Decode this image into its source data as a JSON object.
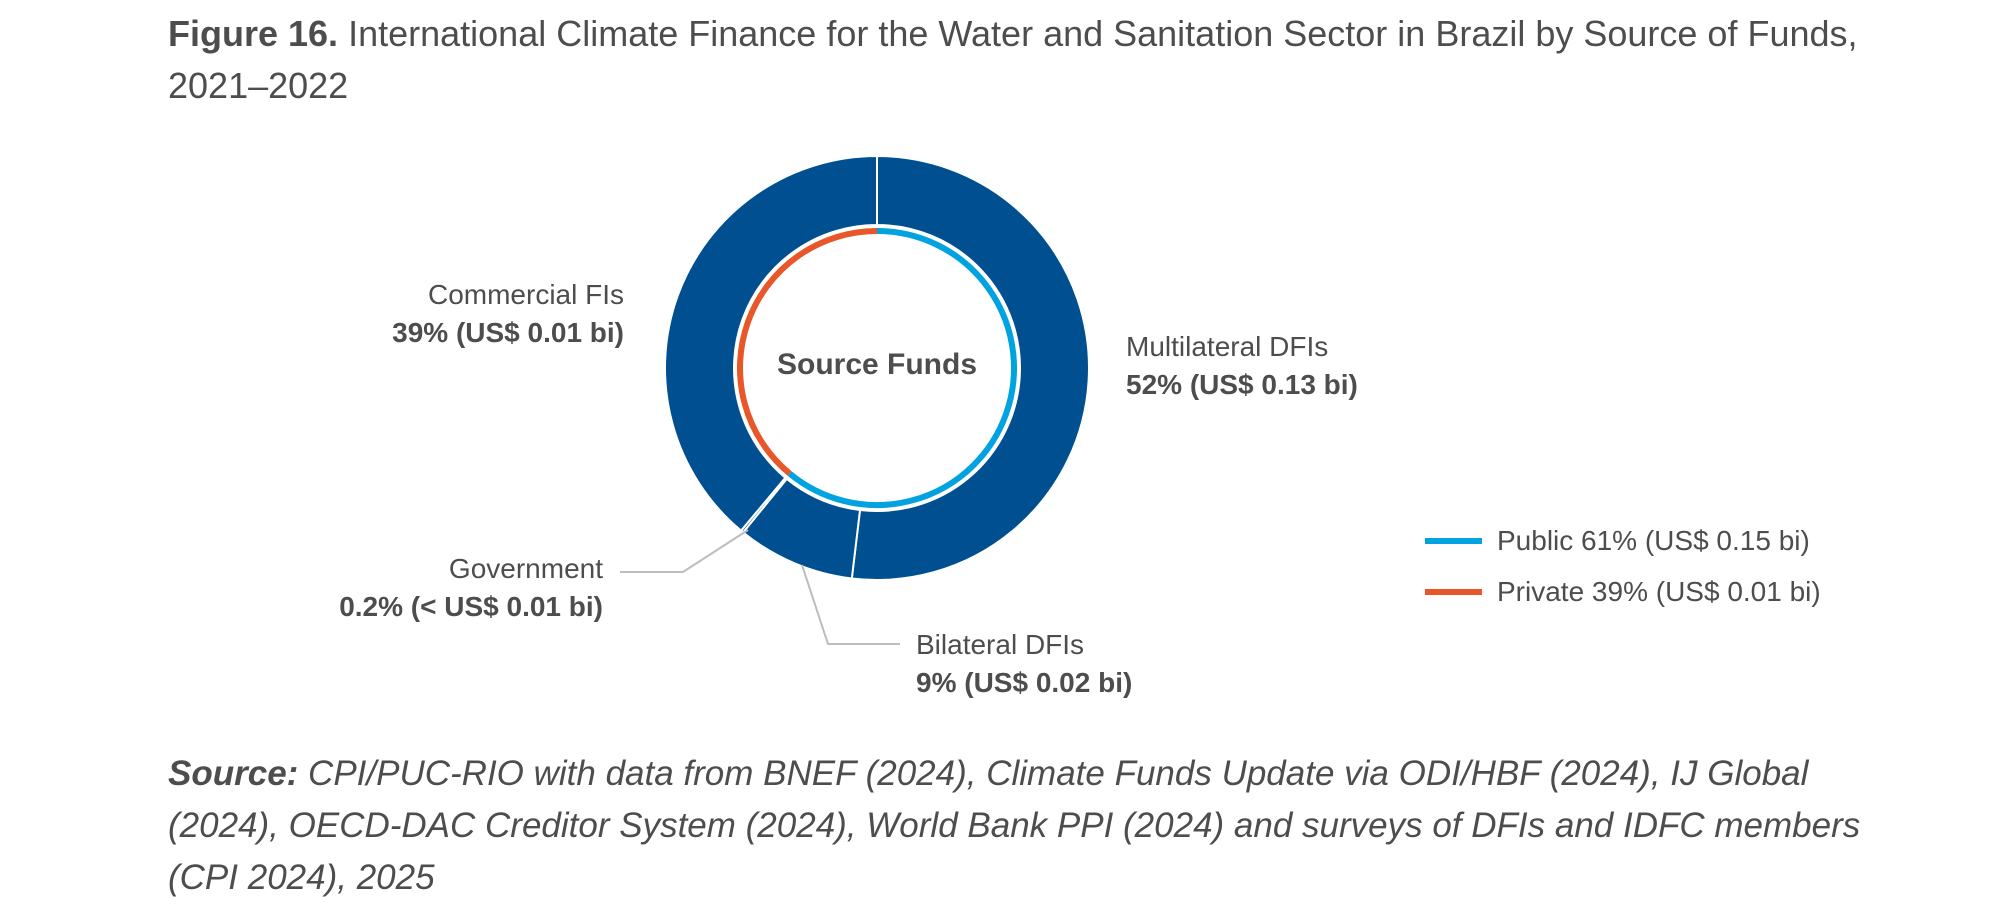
{
  "title": {
    "figure_label": "Figure 16.",
    "text": "International Climate Finance for the Water and Sanitation Sector in Brazil by Source of Funds, 2021–2022"
  },
  "chart_data": {
    "type": "pie",
    "style": "donut",
    "center_label": "Source Funds",
    "outer_ring": [
      {
        "name": "Multilateral DFIs",
        "value": 52,
        "label": "52% (US$ 0.13 bi)",
        "color": "#005091"
      },
      {
        "name": "Bilateral DFIs",
        "value": 9,
        "label": "9% (US$ 0.02 bi)",
        "color": "#005091"
      },
      {
        "name": "Government",
        "value": 0.2,
        "label": "0.2% (< US$ 0.01 bi)",
        "color": "#005091"
      },
      {
        "name": "Commercial FIs",
        "value": 39,
        "label": "39% (US$ 0.01 bi)",
        "color": "#005091"
      }
    ],
    "inner_ring": [
      {
        "name": "Public",
        "value": 61,
        "color": "#00a3e0"
      },
      {
        "name": "Private",
        "value": 39,
        "color": "#e8562a"
      }
    ],
    "legend": {
      "placement": "right",
      "entries": [
        {
          "label": "Public 61% (US$ 0.15 bi)",
          "color": "#00a3e0"
        },
        {
          "label": "Private 39% (US$ 0.01 bi)",
          "color": "#e8562a"
        }
      ]
    }
  },
  "source": {
    "label": "Source:",
    "text": "CPI/PUC-RIO with data from BNEF (2024), Climate Funds Update via ODI/HBF (2024), IJ Global (2024), OECD-DAC Creditor System (2024), World Bank PPI (2024) and surveys of DFIs and IDFC members (CPI 2024), 2025"
  }
}
